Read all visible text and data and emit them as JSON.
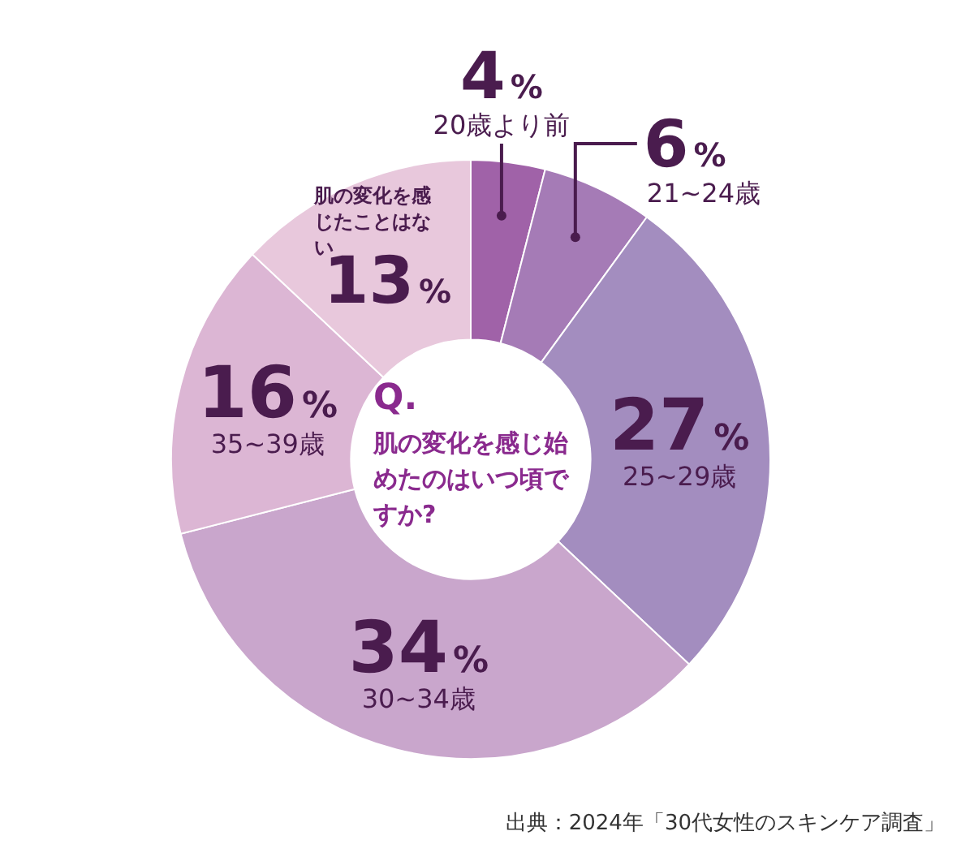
{
  "chart_data": {
    "type": "donut",
    "title": "Q.",
    "subtitle": "肌の変化を感じ始めたのはいつ頃ですか?",
    "categories": [
      "20歳より前",
      "21~24歳",
      "25~29歳",
      "30~34歳",
      "35~39歳",
      "肌の変化を感じたことはない"
    ],
    "values": [
      4,
      6,
      27,
      34,
      16,
      13
    ],
    "value_labels": [
      "4%",
      "6%",
      "27%",
      "34%",
      "16%",
      "13%"
    ],
    "colors": [
      "#a062a8",
      "#a57bb6",
      "#a38dbf",
      "#c9a6cc",
      "#dcb6d4",
      "#e8c8dc"
    ],
    "legend": false,
    "annotations": [
      "出典：2024年「30代女性のスキンケア調査」"
    ]
  }
}
